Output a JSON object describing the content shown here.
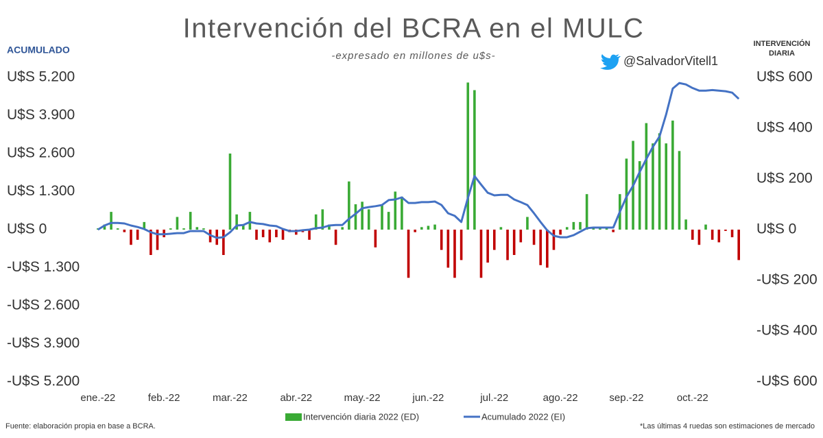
{
  "chart_data": {
    "type": "bar_line",
    "title": "Intervención del BCRA en el MULC",
    "subtitle": "-expresado en millones de u$s-",
    "handle": "@SalvadorVitell1",
    "y_axis_label": "ACUMULADO",
    "y2_axis_label": [
      "INTERVENCIÓN",
      "DIARIA"
    ],
    "source": "Fuente: elaboración propia en base a BCRA.",
    "note": "*Las últimas 4 ruedas son estimaciones de mercado",
    "categories": [
      "ene.-22",
      null,
      null,
      null,
      null,
      null,
      null,
      null,
      null,
      null,
      "feb.-22",
      null,
      null,
      null,
      null,
      null,
      null,
      null,
      null,
      null,
      "mar.-22",
      null,
      null,
      null,
      null,
      null,
      null,
      null,
      null,
      null,
      "abr.-22",
      null,
      null,
      null,
      null,
      null,
      null,
      null,
      null,
      null,
      "may.-22",
      null,
      null,
      null,
      null,
      null,
      null,
      null,
      null,
      null,
      "jun.-22",
      null,
      null,
      null,
      null,
      null,
      null,
      null,
      null,
      null,
      "jul.-22",
      null,
      null,
      null,
      null,
      null,
      null,
      null,
      null,
      null,
      "ago.-22",
      null,
      null,
      null,
      null,
      null,
      null,
      null,
      null,
      null,
      "sep.-22",
      null,
      null,
      null,
      null,
      null,
      null,
      null,
      null,
      null,
      "oct.-22",
      null,
      null,
      null,
      null,
      null,
      null,
      null
    ],
    "ylim": [
      -5200,
      5200
    ],
    "yticks": [
      {
        "value": -5200,
        "label": "-U$S 5.200"
      },
      {
        "value": -3900,
        "label": "-U$S 3.900"
      },
      {
        "value": -2600,
        "label": "-U$S 2.600"
      },
      {
        "value": -1300,
        "label": "-U$S 1.300"
      },
      {
        "value": 0,
        "label": "U$S 0"
      },
      {
        "value": 1300,
        "label": "U$S 1.300"
      },
      {
        "value": 2600,
        "label": "U$S 2.600"
      },
      {
        "value": 3900,
        "label": "U$S 3.900"
      },
      {
        "value": 5200,
        "label": "U$S 5.200"
      }
    ],
    "y2lim": [
      -600,
      600
    ],
    "y2ticks": [
      {
        "value": -600,
        "label": "-U$S 600"
      },
      {
        "value": -400,
        "label": "-U$S 400"
      },
      {
        "value": -200,
        "label": "-U$S 200"
      },
      {
        "value": 0,
        "label": "U$S 0"
      },
      {
        "value": 200,
        "label": "U$S 200"
      },
      {
        "value": 400,
        "label": "U$S 400"
      },
      {
        "value": 600,
        "label": "U$S 600"
      }
    ],
    "legend": "bottom",
    "series": [
      {
        "name": "Intervención diaria 2022 (ED)",
        "type": "bar",
        "axis": "y2",
        "color": "#3aaa35",
        "negative_color": "#c00000",
        "values": [
          5,
          20,
          70,
          5,
          -10,
          -60,
          -40,
          30,
          -100,
          -80,
          -30,
          5,
          50,
          5,
          70,
          10,
          5,
          -50,
          -60,
          -100,
          300,
          60,
          20,
          70,
          -40,
          -30,
          -50,
          -30,
          -40,
          -10,
          -20,
          -10,
          -40,
          60,
          80,
          20,
          -60,
          10,
          190,
          100,
          110,
          80,
          -70,
          100,
          70,
          150,
          130,
          -190,
          -10,
          10,
          15,
          20,
          -80,
          -150,
          -190,
          -120,
          580,
          550,
          -190,
          -130,
          -80,
          10,
          -120,
          -100,
          -50,
          50,
          -60,
          -140,
          -150,
          -80,
          -20,
          10,
          30,
          30,
          140,
          5,
          5,
          10,
          -10,
          140,
          280,
          350,
          270,
          420,
          340,
          380,
          340,
          430,
          310,
          40,
          -40,
          -60,
          20,
          -40,
          -50,
          -5,
          -30,
          -120
        ]
      },
      {
        "name": "Acumulado 2022 (EI)",
        "type": "line",
        "axis": "y",
        "color": "#4472c4",
        "values": [
          0,
          140,
          230,
          230,
          210,
          140,
          90,
          20,
          -90,
          -160,
          -160,
          -140,
          -120,
          -120,
          -50,
          -50,
          -50,
          -190,
          -280,
          -260,
          -90,
          140,
          160,
          260,
          210,
          190,
          140,
          120,
          20,
          -50,
          -50,
          -20,
          0,
          50,
          70,
          140,
          160,
          160,
          370,
          540,
          730,
          770,
          800,
          840,
          1010,
          1030,
          1100,
          910,
          910,
          940,
          940,
          960,
          840,
          560,
          470,
          260,
          1080,
          1830,
          1540,
          1260,
          1170,
          1190,
          1190,
          1030,
          940,
          840,
          560,
          260,
          -20,
          -210,
          -260,
          -260,
          -190,
          -70,
          50,
          70,
          70,
          70,
          70,
          610,
          1120,
          1500,
          1970,
          2410,
          2830,
          3180,
          3930,
          4820,
          5010,
          4960,
          4840,
          4750,
          4750,
          4770,
          4750,
          4730,
          4680,
          4470
        ]
      }
    ]
  }
}
